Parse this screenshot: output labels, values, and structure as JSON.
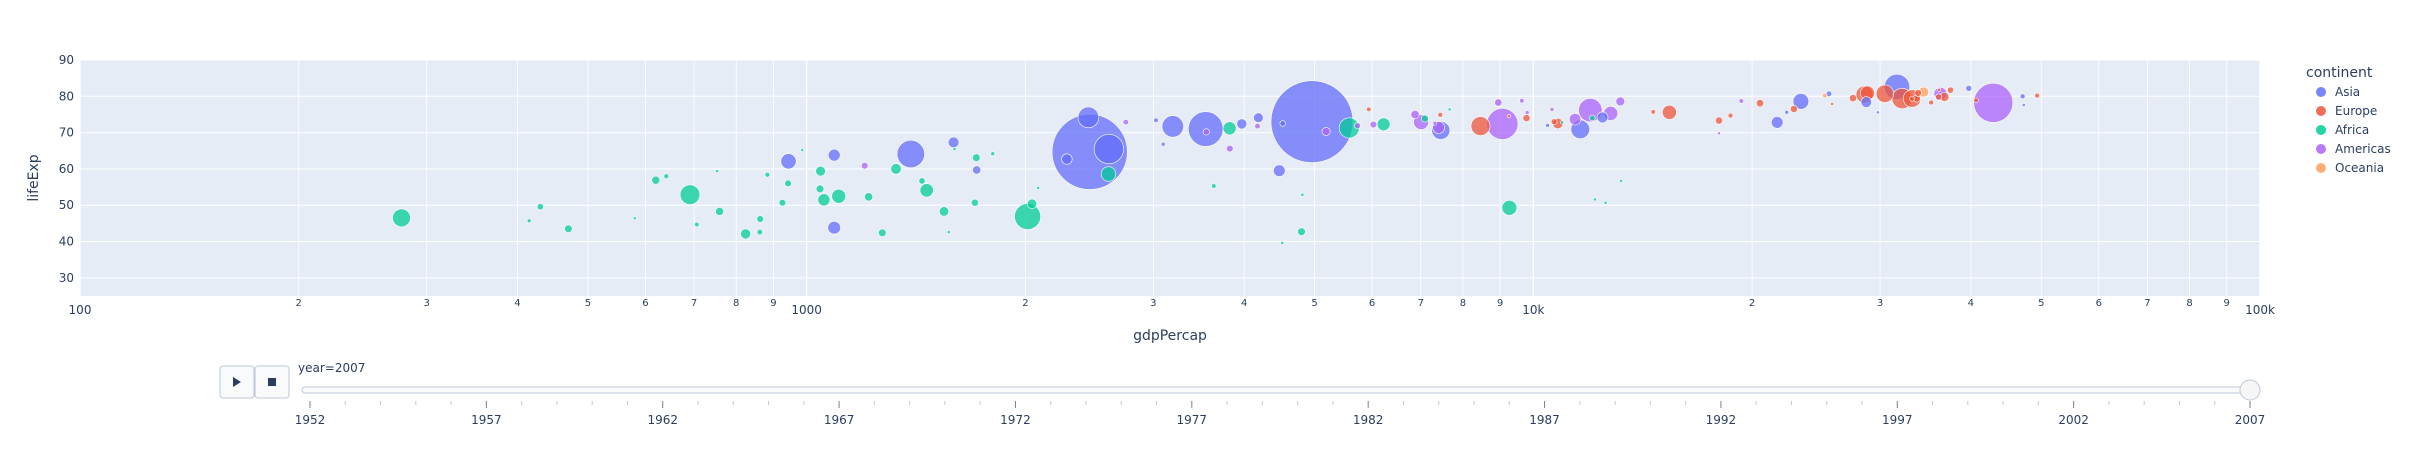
{
  "chart_data": {
    "type": "scatter",
    "xlabel": "gdpPercap",
    "ylabel": "lifeExp",
    "x_scale": "log",
    "xlim": [
      100,
      100000
    ],
    "ylim": [
      25,
      90
    ],
    "x_ticks": [
      "100",
      "1000",
      "10k",
      "100k"
    ],
    "x_minor_ticks": [
      "2",
      "3",
      "4",
      "5",
      "6",
      "7",
      "8",
      "9"
    ],
    "y_ticks": [
      30,
      40,
      50,
      60,
      70,
      80,
      90
    ],
    "grid": true,
    "legend_title": "continent",
    "legend_placement": "right",
    "series": [
      {
        "name": "Asia",
        "color": "#636efa",
        "points": [
          [
            1091,
            43.8,
            32
          ],
          [
            29796,
            75.6,
            1
          ],
          [
            1391,
            64.1,
            150
          ],
          [
            1714,
            59.7,
            14
          ],
          [
            4959,
            73,
            1319
          ],
          [
            39725,
            82.2,
            7
          ],
          [
            2452,
            64.7,
            1110
          ],
          [
            3541,
            71,
            237
          ],
          [
            11606,
            70.9,
            69
          ],
          [
            4471,
            59.5,
            27
          ],
          [
            25523,
            80.7,
            6
          ],
          [
            31656,
            82.6,
            127
          ],
          [
            4519,
            72.5,
            6
          ],
          [
            1593,
            67.3,
            23
          ],
          [
            23348,
            78.6,
            49
          ],
          [
            47307,
            77.6,
            2
          ],
          [
            10461,
            72,
            3
          ],
          [
            12452,
            74.2,
            24
          ],
          [
            3095,
            66.8,
            3
          ],
          [
            944,
            62.1,
            47
          ],
          [
            1091,
            63.8,
            28
          ],
          [
            22316,
            75.6,
            3
          ],
          [
            2606,
            65.5,
            169
          ],
          [
            3190,
            71.7,
            91
          ],
          [
            21655,
            72.8,
            27
          ],
          [
            47143,
            80,
            5
          ],
          [
            3970,
            72.4,
            20
          ],
          [
            4185,
            74.1,
            19
          ],
          [
            28718,
            78.4,
            23
          ],
          [
            7458,
            70.6,
            65
          ],
          [
            2442,
            74.2,
            85
          ],
          [
            3025,
            73.4,
            4
          ],
          [
            2281,
            62.7,
            22
          ]
        ]
      },
      {
        "name": "Europe",
        "color": "#ef553b",
        "points": [
          [
            5937,
            76.4,
            4
          ],
          [
            36126,
            79.8,
            8
          ],
          [
            33693,
            79.4,
            10
          ],
          [
            7446,
            74.9,
            5
          ],
          [
            10681,
            73,
            7
          ],
          [
            14619,
            75.7,
            4
          ],
          [
            22833,
            76.5,
            10
          ],
          [
            35278,
            78.3,
            5
          ],
          [
            33207,
            79.3,
            5
          ],
          [
            30470,
            80.7,
            61
          ],
          [
            32170,
            79.4,
            82
          ],
          [
            27538,
            79.5,
            11
          ],
          [
            18009,
            73.3,
            10
          ],
          [
            36181,
            81.8,
            0.3
          ],
          [
            40676,
            78.9,
            4
          ],
          [
            28570,
            80.5,
            58
          ],
          [
            9254,
            74.5,
            0.7
          ],
          [
            36798,
            79.8,
            16
          ],
          [
            49357,
            80.2,
            5
          ],
          [
            15390,
            75.6,
            39
          ],
          [
            20510,
            78.1,
            11
          ],
          [
            10808,
            72.5,
            22
          ],
          [
            9787,
            74,
            10
          ],
          [
            18678,
            74.7,
            5
          ],
          [
            25768,
            77.9,
            2
          ],
          [
            28821,
            80.9,
            40
          ],
          [
            33860,
            80.9,
            9
          ],
          [
            37506,
            81.7,
            8
          ],
          [
            8458,
            71.8,
            71
          ],
          [
            33203,
            79.4,
            61
          ]
        ]
      },
      {
        "name": "Africa",
        "color": "#00cc96",
        "points": [
          [
            6223,
            72.3,
            33
          ],
          [
            4797,
            42.7,
            12
          ],
          [
            1441,
            56.7,
            8
          ],
          [
            12570,
            50.7,
            2
          ],
          [
            1217,
            52.3,
            14
          ],
          [
            430,
            49.6,
            8
          ],
          [
            2042,
            50.4,
            18
          ],
          [
            706,
            44.7,
            4
          ],
          [
            1704,
            50.7,
            10
          ],
          [
            986,
            65.2,
            0.7
          ],
          [
            277,
            46.5,
            64
          ],
          [
            3633,
            55.3,
            4
          ],
          [
            1545,
            48.3,
            18
          ],
          [
            2082,
            54.8,
            0.5
          ],
          [
            5581,
            71.3,
            80
          ],
          [
            12154,
            51.6,
            0.6
          ],
          [
            641,
            58,
            5
          ],
          [
            691,
            52.9,
            76
          ],
          [
            13206,
            56.7,
            1.5
          ],
          [
            753,
            59.4,
            1.7
          ],
          [
            1327,
            60,
            22
          ],
          [
            943,
            56,
            9
          ],
          [
            580,
            46.4,
            1.5
          ],
          [
            1463,
            54.1,
            35
          ],
          [
            1569,
            42.6,
            2
          ],
          [
            415,
            45.7,
            3
          ],
          [
            12057,
            74,
            6
          ],
          [
            1045,
            59.4,
            19
          ],
          [
            759,
            48.3,
            13
          ],
          [
            1043,
            54.5,
            12
          ],
          [
            1803,
            64.2,
            3
          ],
          [
            10957,
            72.8,
            1.2
          ],
          [
            3820,
            71.2,
            34
          ],
          [
            824,
            42.1,
            20
          ],
          [
            4811,
            52.9,
            2
          ],
          [
            620,
            56.9,
            13
          ],
          [
            2014,
            46.9,
            135
          ],
          [
            7670,
            76.4,
            0.8
          ],
          [
            863,
            46.2,
            9
          ],
          [
            1598,
            65.5,
            0.2
          ],
          [
            1712,
            63.1,
            12
          ],
          [
            862,
            42.6,
            6
          ],
          [
            926,
            50.7,
            9
          ],
          [
            9270,
            49.3,
            44
          ],
          [
            2602,
            58.6,
            42
          ],
          [
            4513,
            39.6,
            1.1
          ],
          [
            1107,
            52.5,
            38
          ],
          [
            883,
            58.4,
            5
          ],
          [
            7093,
            73.9,
            10
          ],
          [
            1056,
            51.5,
            29
          ],
          [
            1271,
            42.4,
            12
          ],
          [
            470,
            43.5,
            12
          ]
        ]
      },
      {
        "name": "Americas",
        "color": "#ab63fa",
        "points": [
          [
            12779,
            75.3,
            40
          ],
          [
            3822,
            65.6,
            9
          ],
          [
            9066,
            72.4,
            190
          ],
          [
            36319,
            80.7,
            33
          ],
          [
            13172,
            78.6,
            16
          ],
          [
            7007,
            72.9,
            44
          ],
          [
            9645,
            78.8,
            4
          ],
          [
            8948,
            78.3,
            11
          ],
          [
            6025,
            72.2,
            9
          ],
          [
            6873,
            75,
            14
          ],
          [
            5728,
            71.9,
            7
          ],
          [
            5186,
            70.3,
            13
          ],
          [
            1202,
            60.9,
            9
          ],
          [
            3548,
            70.2,
            8
          ],
          [
            7321,
            72.6,
            3
          ],
          [
            11978,
            76.2,
            109
          ],
          [
            2749,
            72.9,
            6
          ],
          [
            9809,
            75.5,
            3
          ],
          [
            4173,
            71.8,
            6
          ],
          [
            7409,
            71.4,
            28
          ],
          [
            19328,
            78.7,
            4
          ],
          [
            18009,
            69.8,
            1
          ],
          [
            42952,
            78.2,
            301
          ],
          [
            10611,
            76.4,
            3
          ],
          [
            11416,
            73.7,
            26
          ]
        ]
      },
      {
        "name": "Oceania",
        "color": "#ffa15a",
        "points": [
          [
            34435,
            81.2,
            20
          ],
          [
            25185,
            80.2,
            4
          ]
        ]
      }
    ]
  },
  "slider": {
    "current_label": "year=2007",
    "years": [
      "1952",
      "1957",
      "1962",
      "1967",
      "1972",
      "1977",
      "1982",
      "1987",
      "1992",
      "1997",
      "2002",
      "2007"
    ],
    "value": "2007",
    "play_icon": "play-icon",
    "stop_icon": "stop-icon"
  }
}
